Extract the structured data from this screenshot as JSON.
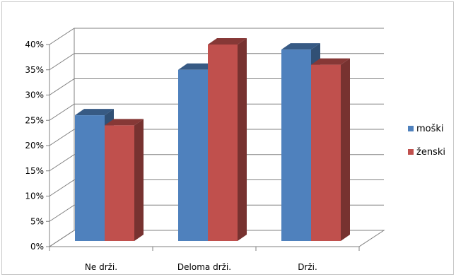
{
  "chart_data": {
    "type": "bar",
    "categories": [
      "Ne drži.",
      "Deloma drži.",
      "Drži."
    ],
    "series": [
      {
        "name": "moški",
        "values": [
          26,
          35,
          39
        ],
        "color": "#4f81bd"
      },
      {
        "name": "ženski",
        "values": [
          24,
          40,
          36
        ],
        "color": "#c0504d"
      }
    ],
    "y_ticks": [
      "0%",
      "5%",
      "10%",
      "15%",
      "20%",
      "25%",
      "30%",
      "35%",
      "40%"
    ],
    "ylim": [
      0,
      40
    ],
    "grid": true,
    "legend_position": "right",
    "three_d": true
  }
}
